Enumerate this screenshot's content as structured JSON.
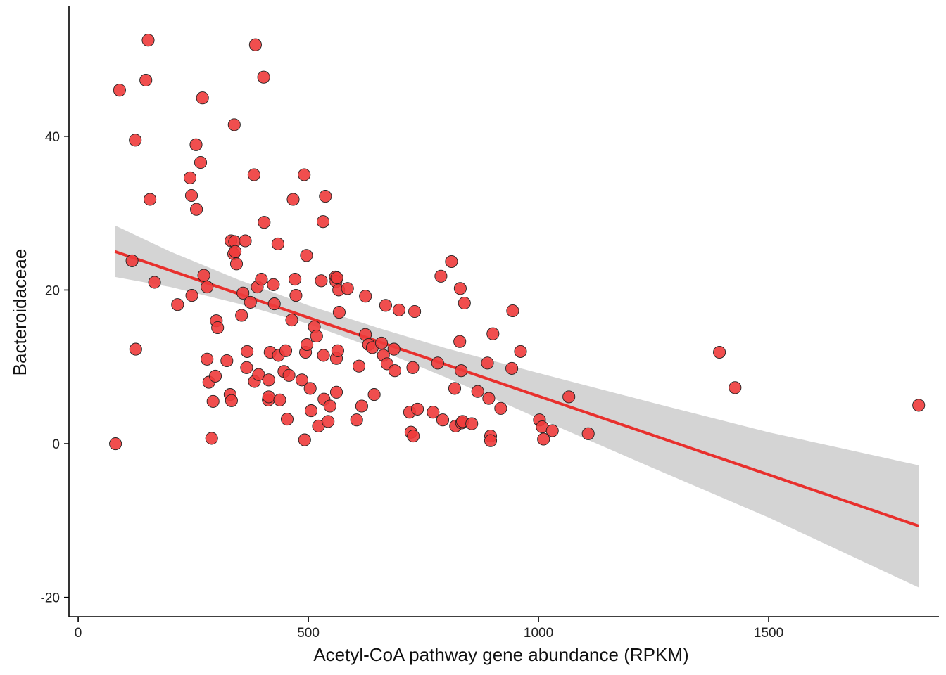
{
  "chart_data": {
    "type": "scatter",
    "title": "",
    "xlabel": "Acetyl-CoA pathway gene abundance (RPKM)",
    "ylabel": "Bacteroidaceae",
    "xlim": [
      -20,
      1870
    ],
    "ylim": [
      -22.5,
      57
    ],
    "xticks": [
      0,
      500,
      1000,
      1500
    ],
    "yticks": [
      -20,
      0,
      20,
      40
    ],
    "xtick_labels": [
      "0",
      "500",
      "1000",
      "1500"
    ],
    "ytick_labels": [
      "-20",
      "0",
      "20",
      "40"
    ],
    "colors": {
      "point_fill": "#ee3b3b",
      "point_stroke": "#222222",
      "fit_line": "#e8302d",
      "band": "#d4d4d4"
    },
    "fit": {
      "method": "lm",
      "x": [
        80,
        1826
      ],
      "y": [
        25.0,
        -10.7
      ],
      "band": [
        {
          "x": 80,
          "lo": 21.7,
          "hi": 28.4
        },
        {
          "x": 200,
          "lo": 20.4,
          "hi": 25.0
        },
        {
          "x": 350,
          "lo": 18.2,
          "hi": 21.3
        },
        {
          "x": 500,
          "lo": 15.6,
          "hi": 18.0
        },
        {
          "x": 650,
          "lo": 12.3,
          "hi": 15.1
        },
        {
          "x": 800,
          "lo": 8.6,
          "hi": 12.4
        },
        {
          "x": 1000,
          "lo": 3.3,
          "hi": 9.2
        },
        {
          "x": 1250,
          "lo": -3.2,
          "hi": 5.3
        },
        {
          "x": 1500,
          "lo": -9.6,
          "hi": 1.5
        },
        {
          "x": 1826,
          "lo": -18.7,
          "hi": -2.8
        }
      ]
    },
    "points": [
      [
        81,
        0.0
      ],
      [
        90,
        46.0
      ],
      [
        117,
        23.8
      ],
      [
        124,
        39.5
      ],
      [
        125,
        12.3
      ],
      [
        147,
        47.3
      ],
      [
        152,
        52.5
      ],
      [
        156,
        31.8
      ],
      [
        166,
        21.0
      ],
      [
        216,
        18.1
      ],
      [
        243,
        34.6
      ],
      [
        246,
        32.3
      ],
      [
        247,
        19.3
      ],
      [
        256,
        38.9
      ],
      [
        257,
        30.5
      ],
      [
        266,
        36.6
      ],
      [
        270,
        45.0
      ],
      [
        273,
        21.9
      ],
      [
        280,
        20.4
      ],
      [
        280,
        11.0
      ],
      [
        284,
        8.0
      ],
      [
        290,
        0.7
      ],
      [
        293,
        5.5
      ],
      [
        298,
        8.8
      ],
      [
        300,
        16.0
      ],
      [
        303,
        15.1
      ],
      [
        323,
        10.8
      ],
      [
        330,
        6.4
      ],
      [
        332,
        26.4
      ],
      [
        333,
        5.6
      ],
      [
        338,
        24.7
      ],
      [
        339,
        41.5
      ],
      [
        340,
        26.3
      ],
      [
        341,
        25.0
      ],
      [
        344,
        23.4
      ],
      [
        355,
        16.7
      ],
      [
        358,
        19.6
      ],
      [
        363,
        26.4
      ],
      [
        366,
        9.9
      ],
      [
        367,
        12.0
      ],
      [
        374,
        18.4
      ],
      [
        382,
        35.0
      ],
      [
        383,
        8.1
      ],
      [
        385,
        51.9
      ],
      [
        389,
        20.4
      ],
      [
        392,
        9.0
      ],
      [
        398,
        21.4
      ],
      [
        403,
        47.7
      ],
      [
        404,
        28.8
      ],
      [
        413,
        5.7
      ],
      [
        414,
        8.3
      ],
      [
        414,
        6.1
      ],
      [
        417,
        11.9
      ],
      [
        424,
        20.7
      ],
      [
        426,
        18.2
      ],
      [
        434,
        26.0
      ],
      [
        435,
        11.5
      ],
      [
        438,
        5.7
      ],
      [
        447,
        9.4
      ],
      [
        451,
        12.1
      ],
      [
        454,
        3.2
      ],
      [
        458,
        8.9
      ],
      [
        464,
        16.1
      ],
      [
        467,
        31.8
      ],
      [
        471,
        21.4
      ],
      [
        473,
        19.3
      ],
      [
        486,
        8.3
      ],
      [
        491,
        35.0
      ],
      [
        492,
        0.5
      ],
      [
        494,
        11.9
      ],
      [
        496,
        24.5
      ],
      [
        497,
        12.9
      ],
      [
        504,
        7.2
      ],
      [
        506,
        4.3
      ],
      [
        513,
        15.2
      ],
      [
        518,
        14.0
      ],
      [
        522,
        2.3
      ],
      [
        528,
        21.2
      ],
      [
        532,
        28.9
      ],
      [
        533,
        11.5
      ],
      [
        534,
        5.8
      ],
      [
        537,
        32.2
      ],
      [
        543,
        2.9
      ],
      [
        547,
        4.9
      ],
      [
        559,
        21.7
      ],
      [
        560,
        21.1
      ],
      [
        561,
        6.7
      ],
      [
        561,
        11.1
      ],
      [
        562,
        21.6
      ],
      [
        564,
        12.1
      ],
      [
        566,
        20.0
      ],
      [
        567,
        17.1
      ],
      [
        585,
        20.2
      ],
      [
        605,
        3.1
      ],
      [
        610,
        10.1
      ],
      [
        616,
        4.9
      ],
      [
        624,
        19.2
      ],
      [
        624,
        14.2
      ],
      [
        631,
        12.9
      ],
      [
        639,
        12.5
      ],
      [
        643,
        6.4
      ],
      [
        659,
        13.1
      ],
      [
        663,
        11.5
      ],
      [
        668,
        18.0
      ],
      [
        671,
        10.4
      ],
      [
        686,
        12.3
      ],
      [
        688,
        9.5
      ],
      [
        697,
        17.4
      ],
      [
        720,
        4.1
      ],
      [
        723,
        1.5
      ],
      [
        727,
        9.9
      ],
      [
        728,
        1.0
      ],
      [
        731,
        17.2
      ],
      [
        737,
        4.5
      ],
      [
        771,
        4.1
      ],
      [
        781,
        10.5
      ],
      [
        788,
        21.8
      ],
      [
        792,
        3.1
      ],
      [
        811,
        23.7
      ],
      [
        818,
        7.2
      ],
      [
        820,
        2.3
      ],
      [
        829,
        13.3
      ],
      [
        830,
        20.2
      ],
      [
        832,
        9.5
      ],
      [
        833,
        2.7
      ],
      [
        835,
        2.9
      ],
      [
        839,
        18.3
      ],
      [
        855,
        2.6
      ],
      [
        868,
        6.8
      ],
      [
        889,
        10.5
      ],
      [
        892,
        5.9
      ],
      [
        896,
        1.0
      ],
      [
        896,
        0.4
      ],
      [
        901,
        14.3
      ],
      [
        918,
        4.6
      ],
      [
        942,
        9.8
      ],
      [
        944,
        17.3
      ],
      [
        961,
        12.0
      ],
      [
        1002,
        3.1
      ],
      [
        1008,
        2.2
      ],
      [
        1011,
        0.6
      ],
      [
        1030,
        1.7
      ],
      [
        1066,
        6.1
      ],
      [
        1108,
        1.3
      ],
      [
        1393,
        11.9
      ],
      [
        1427,
        7.3
      ],
      [
        1826,
        5.0
      ]
    ]
  }
}
